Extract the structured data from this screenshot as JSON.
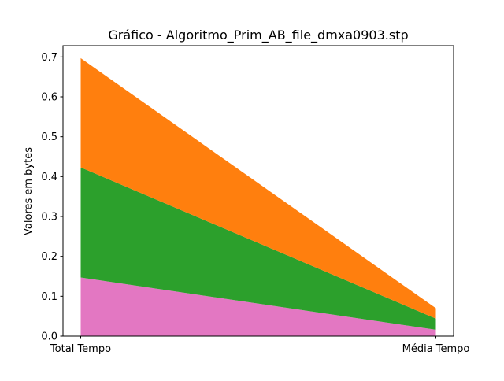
{
  "chart_data": {
    "type": "area",
    "stacked": true,
    "title": "Gráfico - Algoritmo_Prim_AB_file_dmxa0903.stp",
    "xlabel": "",
    "ylabel": "Valores em bytes",
    "categories": [
      "Total Tempo",
      "Média Tempo"
    ],
    "ylim": [
      0,
      0.7
    ],
    "yticks": [
      0.0,
      0.1,
      0.2,
      0.3,
      0.4,
      0.5,
      0.6,
      0.7
    ],
    "ytick_labels": [
      "0.0",
      "0.1",
      "0.2",
      "0.3",
      "0.4",
      "0.5",
      "0.6",
      "0.7"
    ],
    "grid": false,
    "series": [
      {
        "values": [
          0.147,
          0.016
        ],
        "color": "#e377c2"
      },
      {
        "values": [
          0.276,
          0.028
        ],
        "color": "#2ca02c"
      },
      {
        "values": [
          0.274,
          0.026
        ],
        "color": "#ff7f0e"
      }
    ]
  }
}
